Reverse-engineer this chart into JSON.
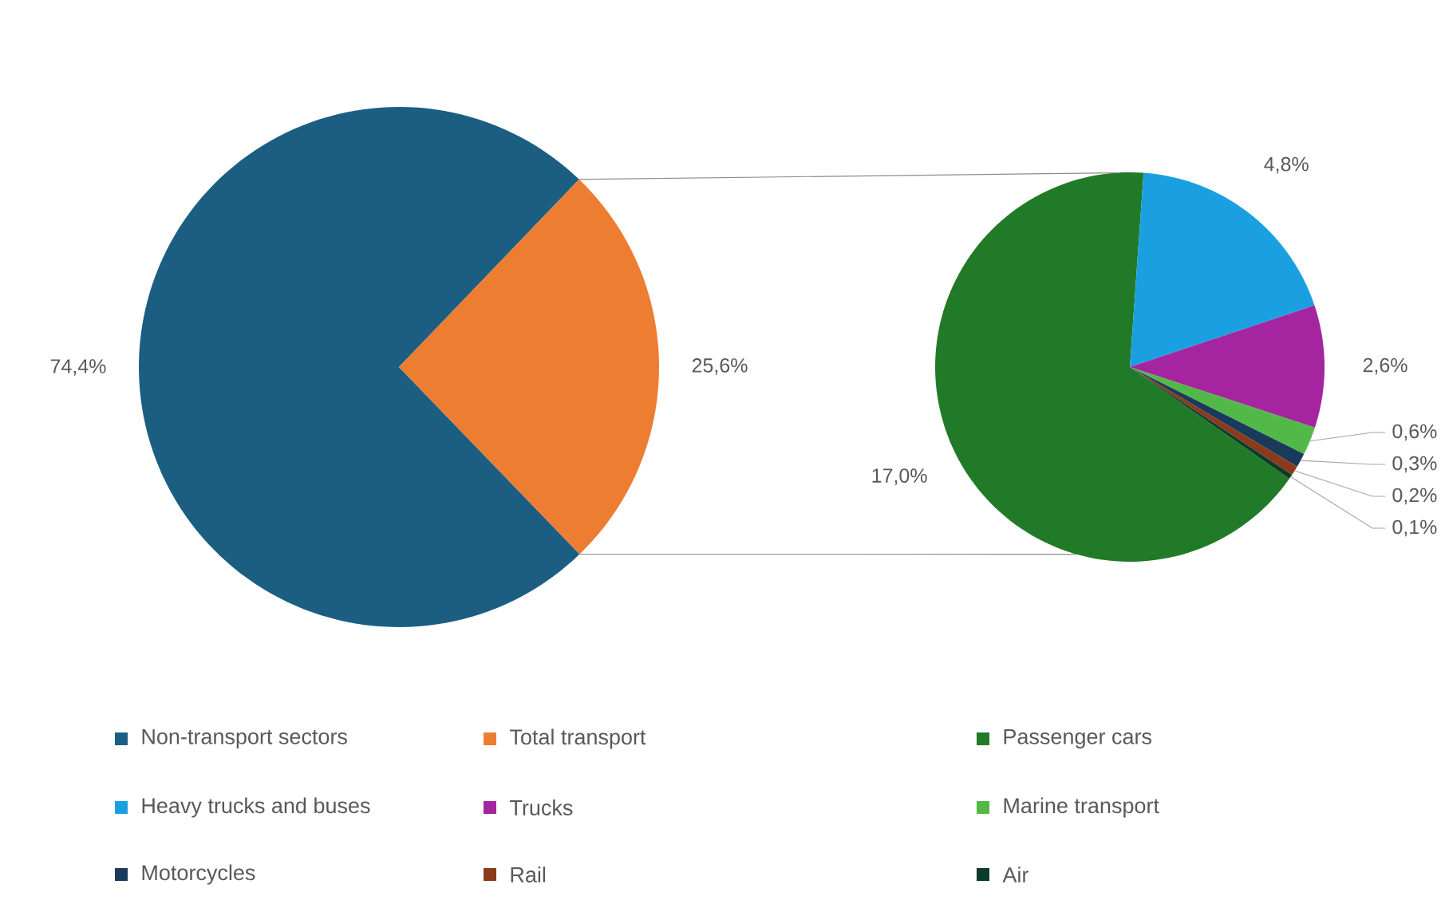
{
  "chart_data": [
    {
      "type": "pie",
      "categories": [
        "Non-transport sectors",
        "Total transport"
      ],
      "values": [
        74.4,
        25.6
      ],
      "value_labels": [
        "74,4%",
        "25,6%"
      ],
      "colors": [
        "#1b5e82",
        "#ed7d31"
      ],
      "legend": "bottom"
    },
    {
      "type": "pie",
      "categories": [
        "Passenger cars",
        "Heavy trucks and buses",
        "Trucks",
        "Marine transport",
        "Motorcycles",
        "Rail",
        "Air"
      ],
      "values": [
        17.0,
        4.8,
        2.6,
        0.6,
        0.3,
        0.2,
        0.1
      ],
      "value_labels": [
        "17,0%",
        "4,8%",
        "2,6%",
        "0,6%",
        "0,3%",
        "0,2%",
        "0,1%"
      ],
      "colors": [
        "#217a27",
        "#1aa0e0",
        "#a5249f",
        "#52b848",
        "#1a3a5c",
        "#8b3a1a",
        "#0d3b2a"
      ],
      "legend": "bottom"
    }
  ]
}
